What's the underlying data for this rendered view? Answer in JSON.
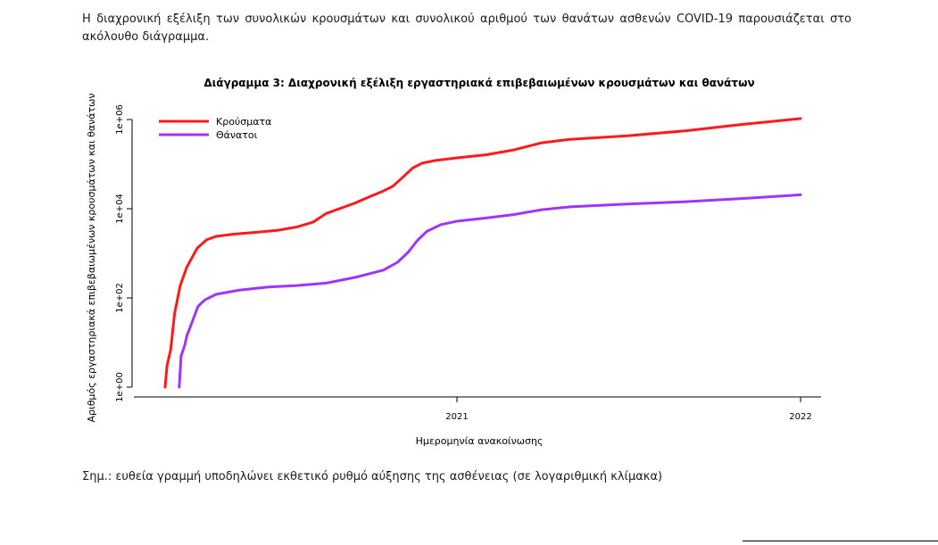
{
  "intro_text": "Η διαχρονική εξέλιξη των συνολικών κρουσμάτων και συνολικού αριθμού των θανάτων ασθενών COVID-19 παρουσιάζεται στο ακόλουθο διάγραμμα.",
  "note_text": "Σημ.: ευθεία γραμμή υποδηλώνει εκθετικό ρυθμό αύξησης της ασθένειας (σε λογαριθμική κλίμακα)",
  "colors": {
    "cases": "#ff1a1a",
    "deaths": "#a033ff",
    "axis": "#000000"
  },
  "chart_data": {
    "type": "line",
    "title": "Διάγραμμα 3: Διαχρονική εξέλιξη εργαστηριακά επιβεβαιωμένων κρουσμάτων και θανάτων",
    "xlabel": "Ημερομηνία ανακοίνωσης",
    "ylabel": "Αριθμός εργαστηριακά επιβεβαιωμένων κρουσμάτων και θανάτων",
    "y_scale": "log",
    "ylim": [
      1,
      1000000
    ],
    "xlim": [
      "2020-02-26",
      "2022-01-01"
    ],
    "x_ticks": [
      {
        "date": "2021-01-01",
        "label": "2021"
      },
      {
        "date": "2022-01-01",
        "label": "2022"
      }
    ],
    "y_ticks": [
      {
        "value": 1,
        "label": "1e+00"
      },
      {
        "value": 100,
        "label": "1e+02"
      },
      {
        "value": 10000,
        "label": "1e+04"
      },
      {
        "value": 1000000,
        "label": "1e+06"
      }
    ],
    "legend_position": "top-left",
    "series": [
      {
        "name": "Κρούσματα",
        "color": "#ff1a1a",
        "points": [
          [
            "2020-02-26",
            1
          ],
          [
            "2020-02-28",
            3
          ],
          [
            "2020-03-03",
            7
          ],
          [
            "2020-03-07",
            45
          ],
          [
            "2020-03-10",
            90
          ],
          [
            "2020-03-13",
            190
          ],
          [
            "2020-03-20",
            490
          ],
          [
            "2020-03-31",
            1300
          ],
          [
            "2020-04-10",
            2000
          ],
          [
            "2020-04-20",
            2400
          ],
          [
            "2020-05-10",
            2700
          ],
          [
            "2020-06-01",
            2950
          ],
          [
            "2020-06-25",
            3300
          ],
          [
            "2020-07-15",
            3900
          ],
          [
            "2020-08-01",
            5000
          ],
          [
            "2020-08-15",
            7800
          ],
          [
            "2020-09-01",
            10500
          ],
          [
            "2020-09-15",
            13500
          ],
          [
            "2020-10-01",
            19000
          ],
          [
            "2020-10-15",
            25000
          ],
          [
            "2020-10-25",
            32000
          ],
          [
            "2020-11-05",
            52000
          ],
          [
            "2020-11-15",
            82000
          ],
          [
            "2020-11-25",
            105000
          ],
          [
            "2020-12-10",
            122000
          ],
          [
            "2021-01-01",
            138000
          ],
          [
            "2021-02-01",
            162000
          ],
          [
            "2021-03-01",
            205000
          ],
          [
            "2021-04-01",
            300000
          ],
          [
            "2021-05-01",
            360000
          ],
          [
            "2021-07-01",
            430000
          ],
          [
            "2021-09-01",
            560000
          ],
          [
            "2021-11-01",
            780000
          ],
          [
            "2022-01-01",
            1050000
          ]
        ]
      },
      {
        "name": "Θάνατοι",
        "color": "#a033ff",
        "points": [
          [
            "2020-03-12",
            1
          ],
          [
            "2020-03-14",
            5
          ],
          [
            "2020-03-18",
            9
          ],
          [
            "2020-03-20",
            14
          ],
          [
            "2020-03-26",
            30
          ],
          [
            "2020-04-01",
            65
          ],
          [
            "2020-04-08",
            90
          ],
          [
            "2020-04-20",
            120
          ],
          [
            "2020-05-15",
            150
          ],
          [
            "2020-06-15",
            175
          ],
          [
            "2020-07-15",
            190
          ],
          [
            "2020-08-15",
            215
          ],
          [
            "2020-09-15",
            290
          ],
          [
            "2020-10-15",
            420
          ],
          [
            "2020-10-30",
            630
          ],
          [
            "2020-11-10",
            1050
          ],
          [
            "2020-11-20",
            1950
          ],
          [
            "2020-11-30",
            3100
          ],
          [
            "2020-12-15",
            4400
          ],
          [
            "2021-01-01",
            5250
          ],
          [
            "2021-02-01",
            6200
          ],
          [
            "2021-03-01",
            7300
          ],
          [
            "2021-04-01",
            9500
          ],
          [
            "2021-05-01",
            11000
          ],
          [
            "2021-07-01",
            12700
          ],
          [
            "2021-09-01",
            14400
          ],
          [
            "2021-11-01",
            17000
          ],
          [
            "2022-01-01",
            20500
          ]
        ]
      }
    ]
  }
}
